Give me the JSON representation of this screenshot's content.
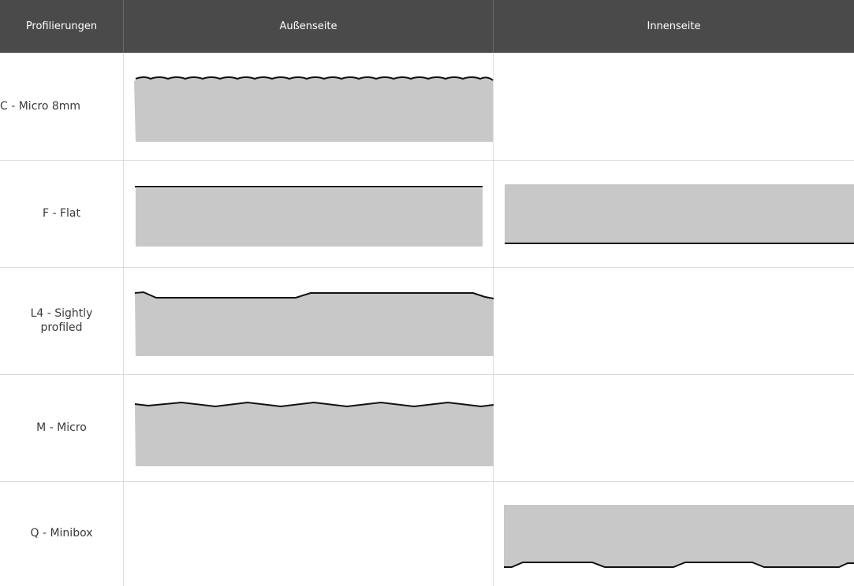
{
  "header": {
    "col_profil": "Profilierungen",
    "col_aussen": "Außenseite",
    "col_innen": "Innenseite"
  },
  "rows": [
    {
      "label": "C - Micro 8mm",
      "aussen": "scalloped-profile",
      "innen": ""
    },
    {
      "label": "F - Flat",
      "aussen": "flat-profile",
      "innen": "flat-profile-inverted"
    },
    {
      "label": "L4 - Sightly profiled",
      "aussen": "slight-profile",
      "innen": ""
    },
    {
      "label": "M - Micro",
      "aussen": "micro-zigzag-profile",
      "innen": ""
    },
    {
      "label": "Q - Minibox",
      "aussen": "",
      "innen": "minibox-profile"
    }
  ],
  "colors": {
    "header_bg": "#4a4a4a",
    "header_text": "#ffffff",
    "fill": "#c8c8c8",
    "outline": "#111111",
    "grid": "#dcdcdc"
  }
}
